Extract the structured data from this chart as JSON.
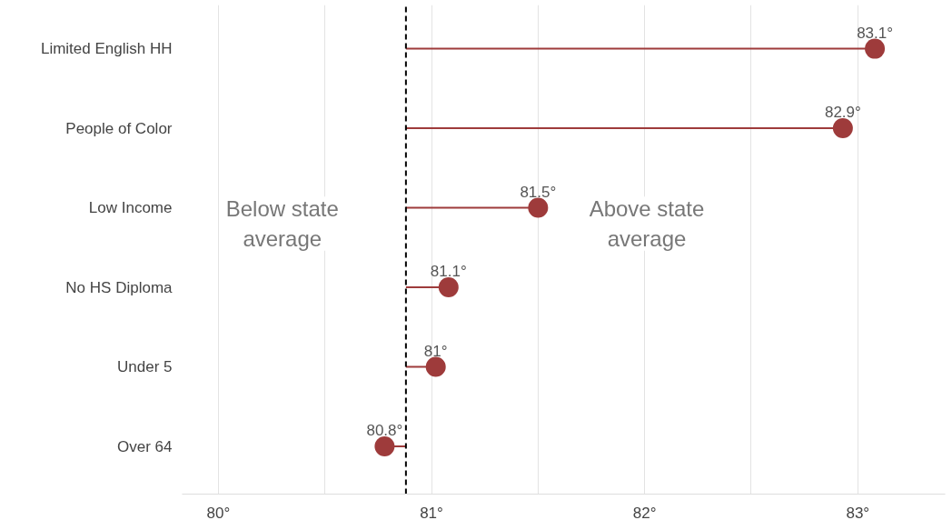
{
  "chart_data": {
    "type": "lollipop",
    "orientation": "horizontal",
    "categories": [
      "Limited English HH",
      "People of Color",
      "Low Income",
      "No HS Diploma",
      "Under 5",
      "Over 64"
    ],
    "values": [
      83.08,
      82.93,
      81.5,
      81.08,
      81.02,
      80.78
    ],
    "value_labels": [
      "83.1°",
      "82.9°",
      "81.5°",
      "81.1°",
      "81°",
      "80.8°"
    ],
    "color": "#9e3b3b",
    "xlim": [
      79.83,
      83.41
    ],
    "xticks": [
      {
        "value": 80,
        "label": "80°"
      },
      {
        "value": 80.5,
        "label": null
      },
      {
        "value": 81,
        "label": "81°"
      },
      {
        "value": 81.5,
        "label": null
      },
      {
        "value": 82,
        "label": "82°"
      },
      {
        "value": 82.5,
        "label": null
      },
      {
        "value": 83,
        "label": "83°"
      }
    ],
    "grid": "x",
    "ref_lines": [
      {
        "axis": "x",
        "value": 80.88,
        "label": null,
        "color": "#000000",
        "line_style": "dashed"
      }
    ],
    "annotations": [
      "Below state average",
      "Above state average"
    ]
  }
}
